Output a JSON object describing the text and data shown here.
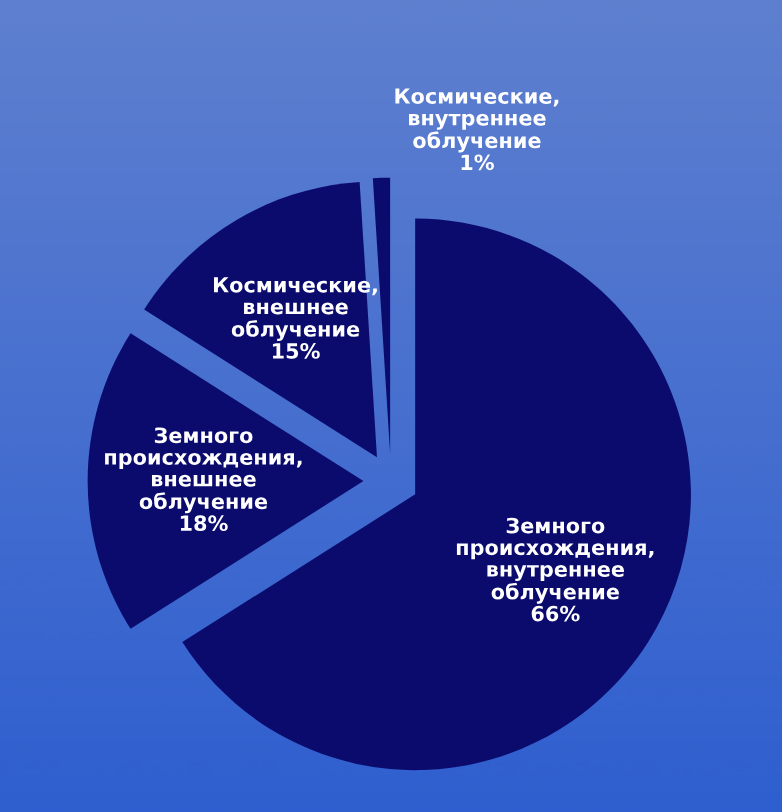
{
  "chart_data": {
    "type": "pie",
    "categories": [
      "Земного\nпроисхождения,\nвнутреннее\nоблучение",
      "Земного\nпроисхождения,\nвнешнее\nоблучение",
      "Космические,\nвнешнее\nоблучение",
      "Космические,\nвнутреннее\nоблучение"
    ],
    "values": [
      66,
      18,
      15,
      1
    ],
    "colors": [
      "#0b0b6e",
      "#0b0b6e",
      "#0b0b6e",
      "#0b0b6e"
    ],
    "value_labels": [
      "66%",
      "18%",
      "15%",
      "1%"
    ]
  }
}
